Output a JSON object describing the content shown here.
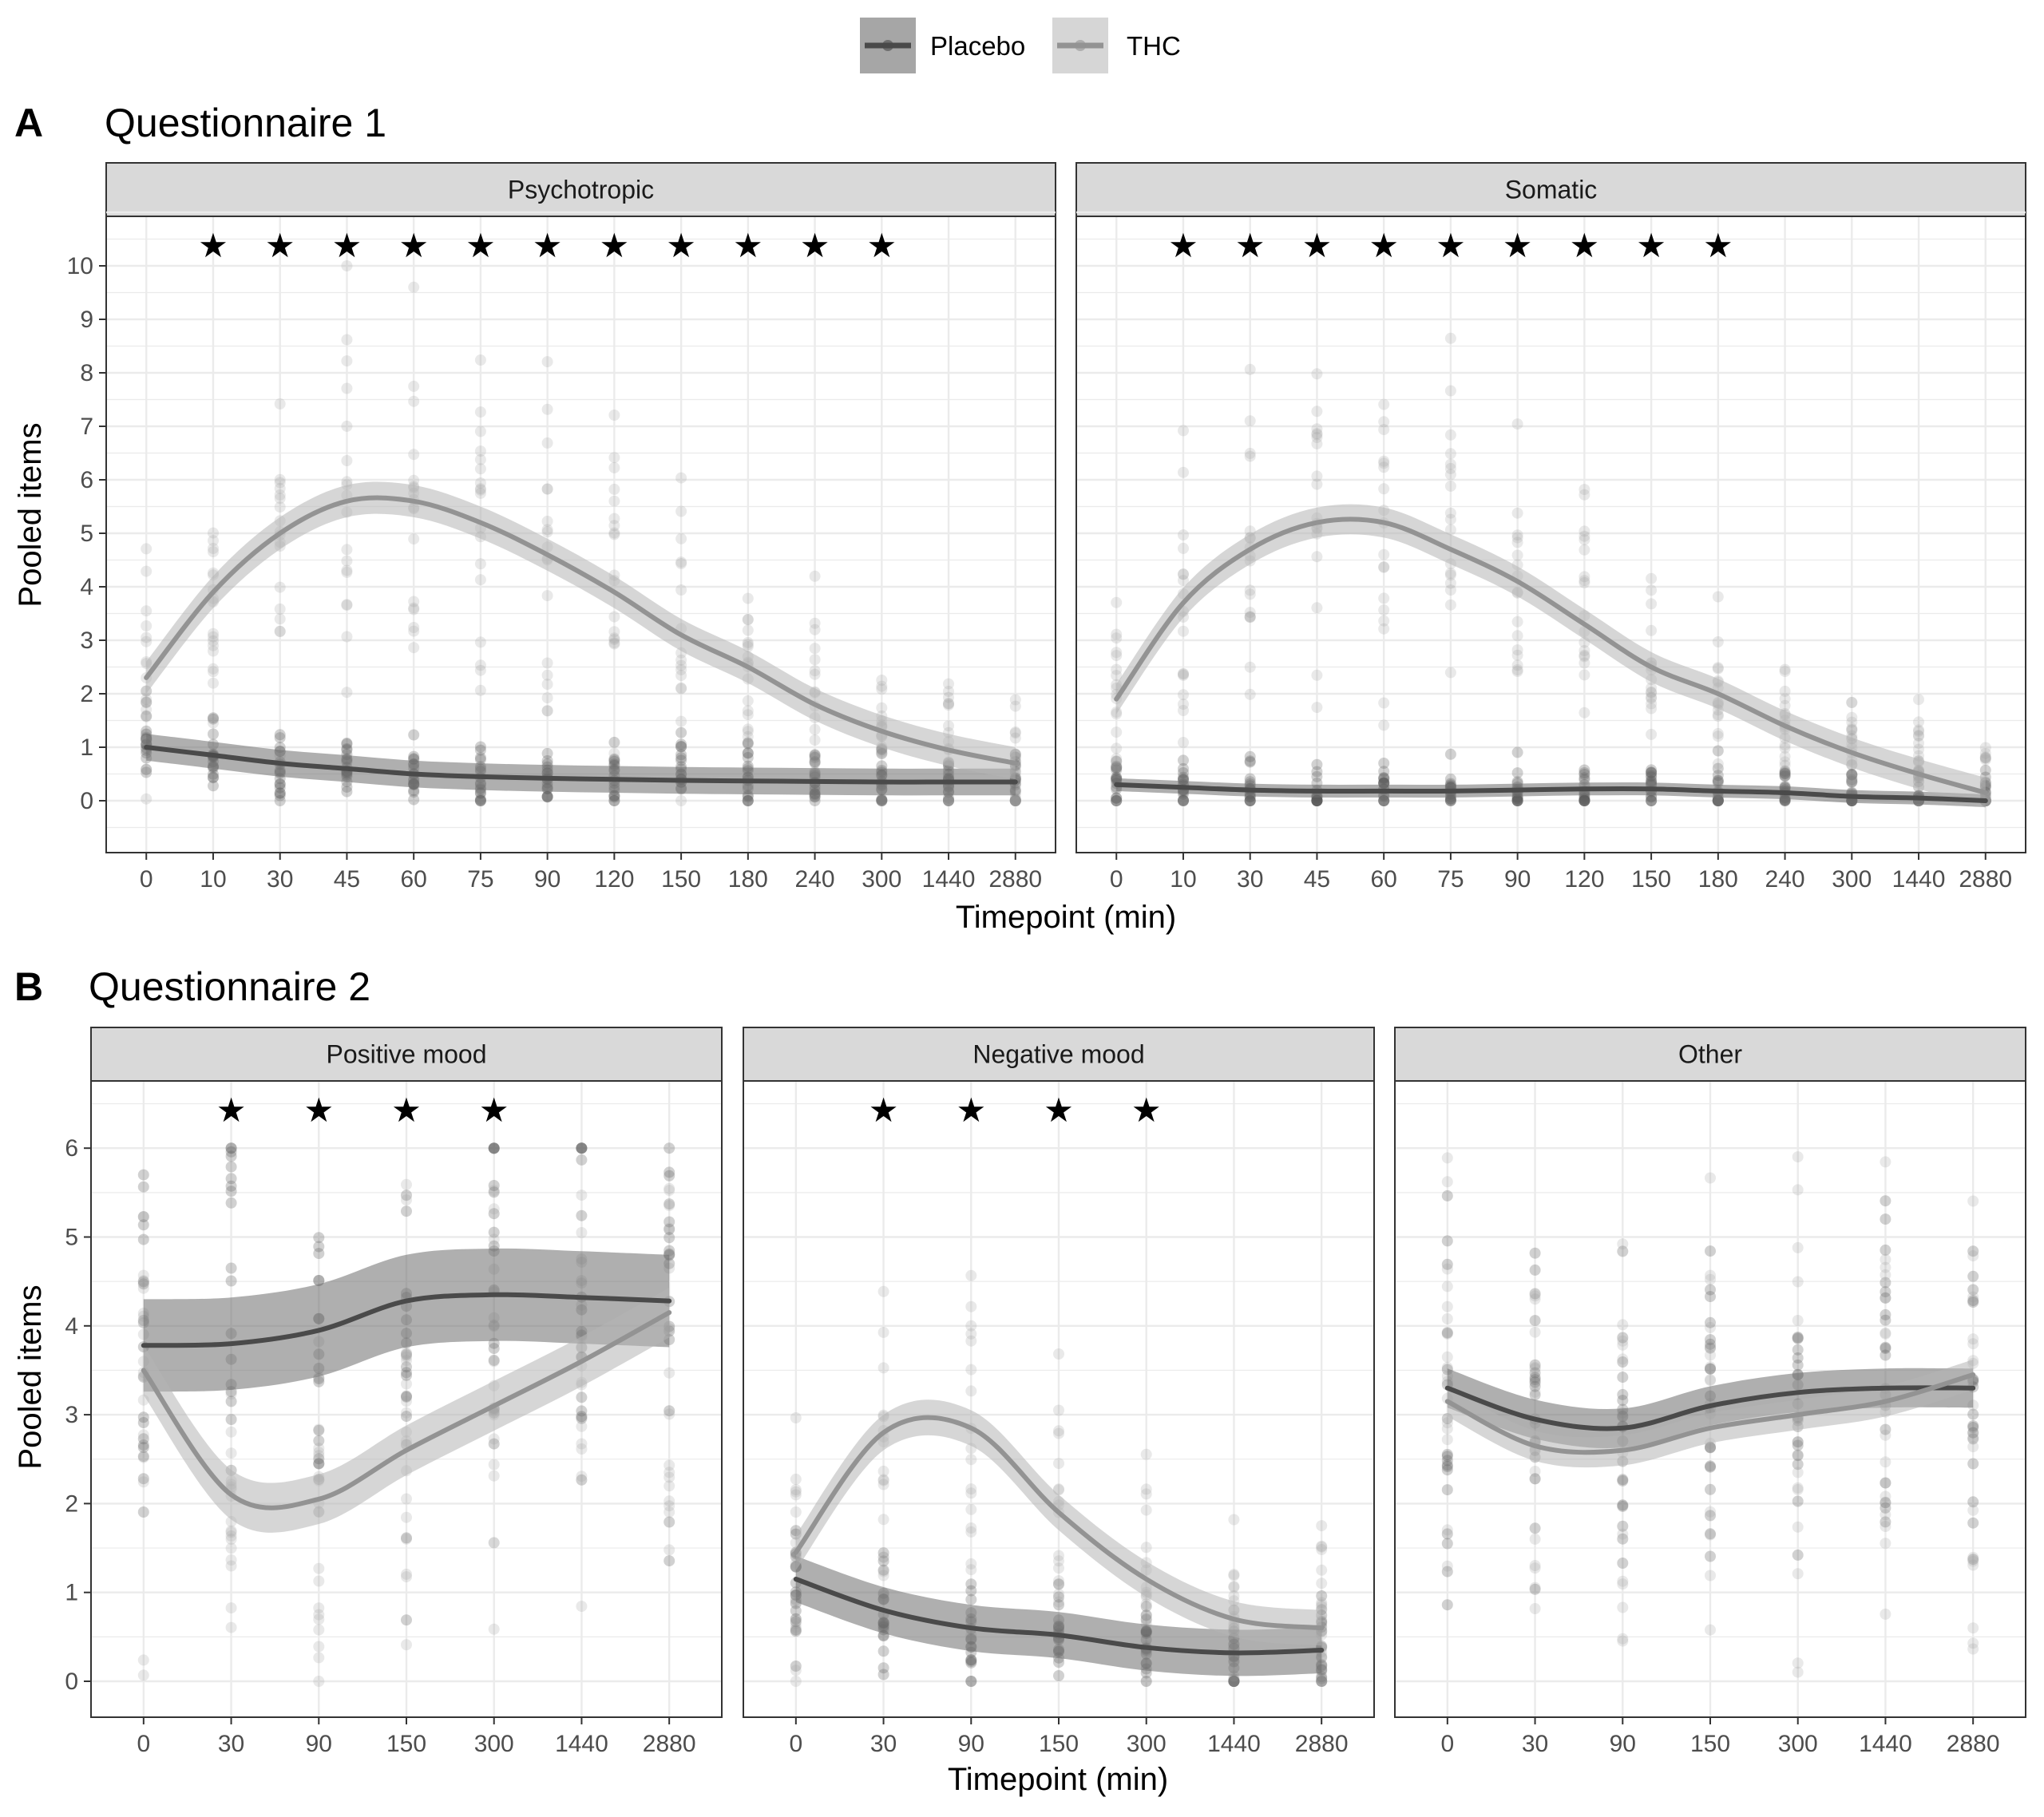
{
  "legend": {
    "items": [
      {
        "label": "Placebo",
        "line_color": "#4a4a4a",
        "box_color": "#a6a6a6"
      },
      {
        "label": "THC",
        "line_color": "#939393",
        "box_color": "#d6d6d6"
      }
    ]
  },
  "colors": {
    "placebo_line": "#4a4a4a",
    "thc_line": "#939393",
    "placebo_band": "#6e6e6e",
    "thc_band": "#b4b4b4",
    "placebo_points": "#5a5a5a",
    "thc_points": "#9a9a9a",
    "strip_bg": "#d9d9d9",
    "grid": "#ebebeb"
  },
  "chart_data": [
    {
      "type": "line",
      "tag": "A",
      "title": "Questionnaire 1",
      "ylabel": "Pooled items",
      "xlabel": "Timepoint (min)",
      "x_ticks": [
        "0",
        "10",
        "30",
        "45",
        "60",
        "75",
        "90",
        "120",
        "150",
        "180",
        "240",
        "300",
        "1440",
        "2880"
      ],
      "y_ticks": [
        0,
        1,
        2,
        3,
        4,
        5,
        6,
        7,
        8,
        9,
        10
      ],
      "ylim": [
        -0.9,
        11.0
      ],
      "facets": [
        {
          "strip": "Psychotropic",
          "significant_timepoints": [
            "10",
            "30",
            "45",
            "60",
            "75",
            "90",
            "120",
            "150",
            "180",
            "240",
            "300"
          ],
          "series": [
            {
              "name": "Placebo",
              "values": [
                1.0,
                0.85,
                0.7,
                0.6,
                0.5,
                0.45,
                0.42,
                0.4,
                0.38,
                0.37,
                0.36,
                0.35,
                0.35,
                0.35
              ],
              "band": 0.25
            },
            {
              "name": "THC",
              "values": [
                2.3,
                3.9,
                5.0,
                5.6,
                5.6,
                5.2,
                4.6,
                3.9,
                3.1,
                2.5,
                1.8,
                1.3,
                0.95,
                0.7
              ],
              "band": 0.3
            }
          ]
        },
        {
          "strip": "Somatic",
          "significant_timepoints": [
            "10",
            "30",
            "45",
            "60",
            "75",
            "90",
            "120",
            "150",
            "180"
          ],
          "series": [
            {
              "name": "Placebo",
              "values": [
                0.3,
                0.25,
                0.2,
                0.18,
                0.18,
                0.18,
                0.2,
                0.22,
                0.22,
                0.18,
                0.15,
                0.08,
                0.05,
                0.0
              ],
              "band": 0.12
            },
            {
              "name": "THC",
              "values": [
                1.9,
                3.7,
                4.7,
                5.2,
                5.2,
                4.7,
                4.1,
                3.3,
                2.5,
                2.0,
                1.4,
                0.9,
                0.5,
                0.15
              ],
              "band": 0.28
            }
          ]
        }
      ]
    },
    {
      "type": "line",
      "tag": "B",
      "title": "Questionnaire 2",
      "ylabel": "Pooled items",
      "xlabel": "Timepoint (min)",
      "x_ticks": [
        "0",
        "30",
        "90",
        "150",
        "300",
        "1440",
        "2880"
      ],
      "y_ticks": [
        0,
        1,
        2,
        3,
        4,
        5,
        6
      ],
      "ylim": [
        -0.42,
        6.7
      ],
      "facets": [
        {
          "strip": "Positive mood",
          "significant_timepoints": [
            "30",
            "90",
            "150",
            "300"
          ],
          "series": [
            {
              "name": "Placebo",
              "values": [
                3.78,
                3.8,
                3.95,
                4.28,
                4.35,
                4.32,
                4.28
              ],
              "band": 0.52
            },
            {
              "name": "THC",
              "values": [
                3.5,
                2.1,
                2.05,
                2.6,
                3.1,
                3.6,
                4.15
              ],
              "band": 0.28
            }
          ]
        },
        {
          "strip": "Negative mood",
          "significant_timepoints": [
            "30",
            "90",
            "150",
            "300"
          ],
          "series": [
            {
              "name": "Placebo",
              "values": [
                1.15,
                0.8,
                0.6,
                0.52,
                0.38,
                0.32,
                0.35
              ],
              "band": 0.26
            },
            {
              "name": "THC",
              "values": [
                1.45,
                2.8,
                2.85,
                1.9,
                1.15,
                0.7,
                0.6
              ],
              "band": 0.2
            }
          ]
        },
        {
          "strip": "Other",
          "significant_timepoints": [],
          "series": [
            {
              "name": "Placebo",
              "values": [
                3.3,
                2.95,
                2.85,
                3.1,
                3.25,
                3.3,
                3.3
              ],
              "band": 0.22
            },
            {
              "name": "THC",
              "values": [
                3.15,
                2.65,
                2.6,
                2.85,
                3.0,
                3.15,
                3.45
              ],
              "band": 0.17
            }
          ]
        }
      ]
    }
  ]
}
